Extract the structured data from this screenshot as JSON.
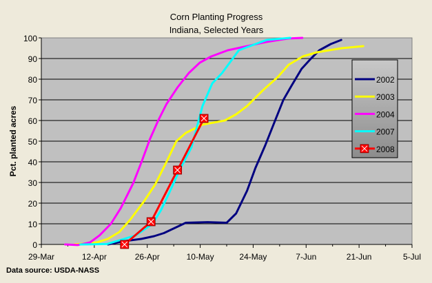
{
  "chart_data": {
    "type": "line",
    "title": "Corn Planting Progress",
    "subtitle": "Indiana, Selected Years",
    "xlabel": "",
    "ylabel": "Pct. planted acres",
    "x_units": "days since 29-Mar",
    "xlim": [
      0,
      98
    ],
    "ylim": [
      0,
      100
    ],
    "x_ticks": [
      {
        "v": 0,
        "label": "29-Mar"
      },
      {
        "v": 14,
        "label": "12-Apr"
      },
      {
        "v": 28,
        "label": "26-Apr"
      },
      {
        "v": 42,
        "label": "10-May"
      },
      {
        "v": 56,
        "label": "24-May"
      },
      {
        "v": 70,
        "label": "7-Jun"
      },
      {
        "v": 84,
        "label": "21-Jun"
      },
      {
        "v": 98,
        "label": "5-Jul"
      }
    ],
    "y_ticks": [
      0,
      10,
      20,
      30,
      40,
      50,
      60,
      70,
      80,
      90,
      100
    ],
    "grid": true,
    "legend": "right",
    "source": "Data source: USDA-NASS",
    "series": [
      {
        "name": "2002",
        "color": "#000080",
        "marker": false,
        "points": [
          [
            17.6,
            0
          ],
          [
            22,
            1.6
          ],
          [
            26.5,
            2.7
          ],
          [
            29.8,
            4
          ],
          [
            32.4,
            5.5
          ],
          [
            35.3,
            8
          ],
          [
            38.2,
            10.5
          ],
          [
            44,
            10.8
          ],
          [
            49,
            10.5
          ],
          [
            51.5,
            15
          ],
          [
            54.4,
            26
          ],
          [
            56.6,
            37
          ],
          [
            59.2,
            48
          ],
          [
            61.8,
            60
          ],
          [
            64,
            70
          ],
          [
            66.2,
            77
          ],
          [
            68.8,
            85
          ],
          [
            71.3,
            90
          ],
          [
            73.5,
            94
          ],
          [
            76.5,
            97
          ],
          [
            79.3,
            99
          ]
        ]
      },
      {
        "name": "2003",
        "color": "#FFFF00",
        "marker": false,
        "points": [
          [
            8.8,
            0
          ],
          [
            14.7,
            1
          ],
          [
            17.6,
            2.7
          ],
          [
            20.6,
            6
          ],
          [
            23.5,
            12
          ],
          [
            27.2,
            21
          ],
          [
            30.1,
            29
          ],
          [
            33.1,
            40
          ],
          [
            35.7,
            50
          ],
          [
            38.2,
            54
          ],
          [
            42.6,
            58
          ],
          [
            48.5,
            60
          ],
          [
            51.5,
            63
          ],
          [
            54.4,
            67
          ],
          [
            58.8,
            75
          ],
          [
            62.5,
            81
          ],
          [
            65.4,
            87
          ],
          [
            69.1,
            91
          ],
          [
            72.8,
            93
          ],
          [
            79.4,
            95
          ],
          [
            85.1,
            96
          ]
        ]
      },
      {
        "name": "2004",
        "color": "#FF00FF",
        "marker": false,
        "points": [
          [
            6.3,
            0
          ],
          [
            9.6,
            -0.3
          ],
          [
            12.9,
            1
          ],
          [
            15.4,
            4.4
          ],
          [
            18.4,
            10
          ],
          [
            21,
            17.6
          ],
          [
            24.3,
            29.7
          ],
          [
            26.5,
            40
          ],
          [
            28.7,
            51
          ],
          [
            30.9,
            60
          ],
          [
            33.1,
            68
          ],
          [
            36,
            76
          ],
          [
            39,
            83
          ],
          [
            41.9,
            88
          ],
          [
            44.9,
            91
          ],
          [
            49.3,
            94
          ],
          [
            54.4,
            96
          ],
          [
            59.4,
            98
          ],
          [
            65.3,
            99.7
          ],
          [
            69,
            100
          ]
        ]
      },
      {
        "name": "2007",
        "color": "#00FFFF",
        "marker": false,
        "points": [
          [
            10.3,
            0
          ],
          [
            17.3,
            0.2
          ],
          [
            20.6,
            2
          ],
          [
            25,
            4.4
          ],
          [
            29.4,
            10
          ],
          [
            31.6,
            16.5
          ],
          [
            33.8,
            25
          ],
          [
            36.8,
            37
          ],
          [
            39.7,
            47
          ],
          [
            42.6,
            67
          ],
          [
            45.2,
            78
          ],
          [
            47.8,
            83
          ],
          [
            52.2,
            94
          ],
          [
            56.6,
            97
          ],
          [
            59.6,
            99
          ],
          [
            65.8,
            100
          ]
        ]
      },
      {
        "name": "2008",
        "color": "#FF0000",
        "marker": true,
        "points": [
          [
            22,
            0
          ],
          [
            29,
            11
          ],
          [
            36,
            36
          ],
          [
            43,
            61
          ]
        ]
      }
    ]
  }
}
